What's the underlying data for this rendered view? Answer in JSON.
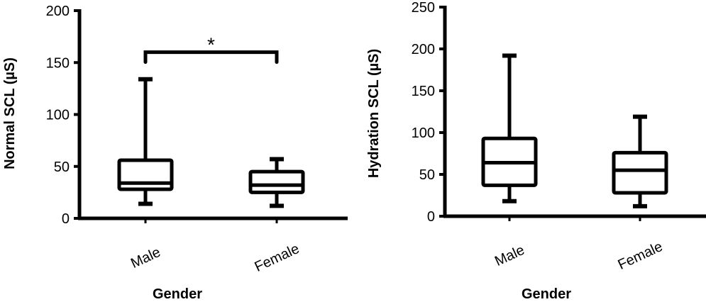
{
  "chart_data": [
    {
      "type": "boxplot",
      "title": "",
      "xlabel": "Gender",
      "ylabel": "Normal SCL (µS)",
      "ylim": [
        0,
        200
      ],
      "yticks": [
        0,
        50,
        100,
        150,
        200
      ],
      "categories": [
        "Male",
        "Female"
      ],
      "boxes": [
        {
          "category": "Male",
          "min": 14,
          "q1": 28,
          "median": 34,
          "q3": 56,
          "max": 134
        },
        {
          "category": "Female",
          "min": 12,
          "q1": 25,
          "median": 32,
          "q3": 45,
          "max": 57
        }
      ],
      "annotations": [
        {
          "type": "significance",
          "between": [
            "Male",
            "Female"
          ],
          "label": "*",
          "y": 160
        }
      ],
      "grid": false
    },
    {
      "type": "boxplot",
      "title": "",
      "xlabel": "Gender",
      "ylabel": "Hydration SCL (µS)",
      "ylim": [
        0,
        250
      ],
      "yticks": [
        0,
        50,
        100,
        150,
        200,
        250
      ],
      "categories": [
        "Male",
        "Female"
      ],
      "boxes": [
        {
          "category": "Male",
          "min": 18,
          "q1": 37,
          "median": 64,
          "q3": 93,
          "max": 192
        },
        {
          "category": "Female",
          "min": 12,
          "q1": 28,
          "median": 55,
          "q3": 76,
          "max": 119
        }
      ],
      "annotations": [],
      "grid": false
    }
  ]
}
